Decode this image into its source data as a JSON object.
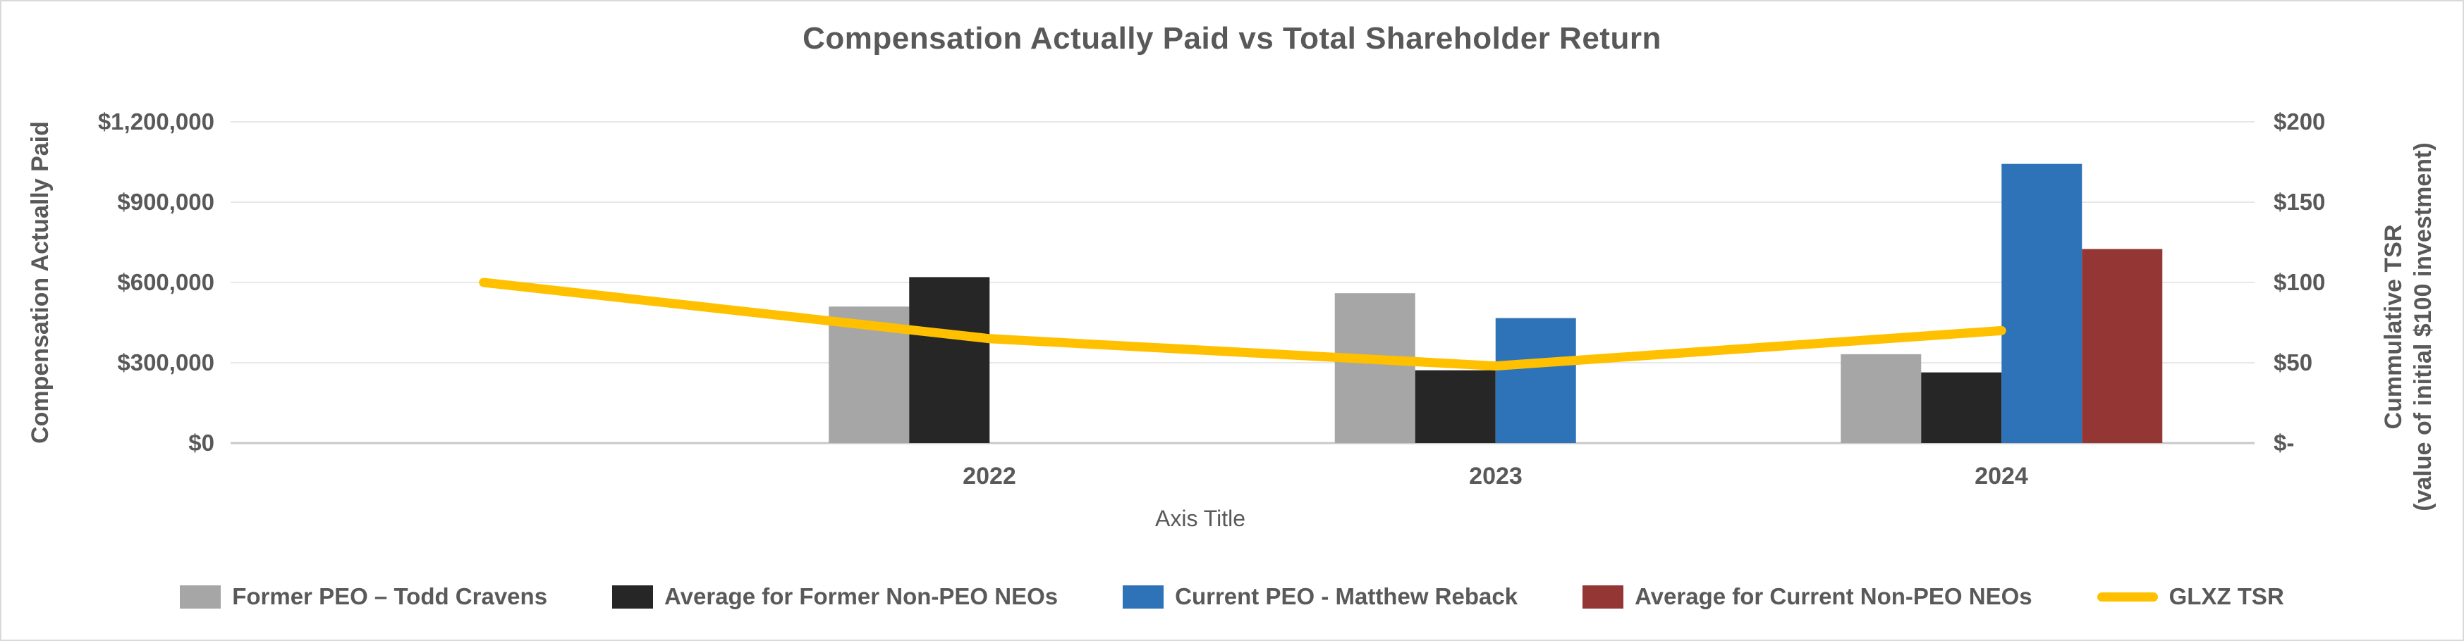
{
  "chart_data": {
    "type": "combo-bar-line",
    "title": "Compensation Actually Paid vs Total Shareholder Return",
    "categories": [
      "",
      "2022",
      "2023",
      "2024"
    ],
    "bar_series": [
      {
        "name": "Former PEO – Todd Cravens",
        "color": "#A6A6A6",
        "values": [
          null,
          510000,
          560000,
          332000
        ]
      },
      {
        "name": "Average for Former Non-PEO NEOs",
        "color": "#262626",
        "values": [
          null,
          620000,
          272000,
          264000
        ]
      },
      {
        "name": "Current PEO  - Matthew Reback",
        "color": "#2E73B8",
        "values": [
          null,
          null,
          467000,
          1043000
        ]
      },
      {
        "name": "Average for Current Non-PEO NEOs",
        "color": "#943734",
        "values": [
          null,
          null,
          null,
          725000
        ]
      }
    ],
    "line_series": {
      "name": "GLXZ TSR",
      "color": "#FFC000",
      "values": [
        100,
        65,
        48,
        70
      ]
    },
    "left_axis": {
      "title": "Compensation Actually Paid",
      "min": 0,
      "max": 1200000,
      "ticks": [
        "$1,200,000",
        "$900,000",
        "$600,000",
        "$300,000",
        "$0"
      ]
    },
    "right_axis": {
      "title_line1": "Cummulative TSR",
      "title_line2": "(value of initial $100 investment)",
      "min": 0,
      "max": 200,
      "ticks": [
        "$200",
        "$150",
        "$100",
        "$50",
        "$-"
      ]
    },
    "x_axis_title": "Axis Title",
    "grid": true,
    "legend_position": "bottom"
  },
  "colors": {
    "text": "#595959",
    "gridline": "#E7E7E7",
    "axis_line": "#C9C9C9",
    "background": "#FFFFFF"
  }
}
